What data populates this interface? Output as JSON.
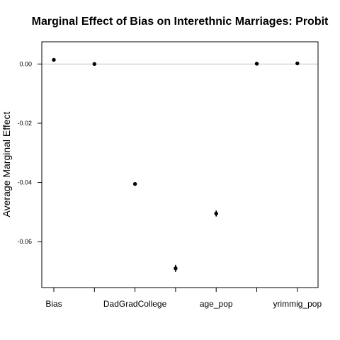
{
  "chart_data": {
    "type": "scatter",
    "title": "Marginal Effect of Bias on Interethnic Marriages: Probit",
    "xlabel": "",
    "ylabel": "Average Marginal Effect",
    "categories": [
      "Bias",
      "",
      "DadGradCollege",
      "",
      "age_pop",
      "",
      "yrimmig_pop"
    ],
    "values": [
      0.0014,
      0.0,
      -0.0405,
      -0.069,
      -0.0505,
      0.0001,
      0.0002
    ],
    "error_halfwidth": [
      0.0003,
      0.0002,
      0.0006,
      0.0012,
      0.001,
      0.0002,
      0.0002
    ],
    "yticks": [
      0.0,
      -0.02,
      -0.04,
      -0.06
    ],
    "ytick_labels": [
      "0.00",
      "-0.02",
      "-0.04",
      "-0.06"
    ],
    "ylim": [
      -0.0755,
      0.0075
    ],
    "reference_line": 0,
    "grid": false,
    "colors": {
      "points": "#000000",
      "reference_line": "#bebebe",
      "axes": "#000000"
    }
  }
}
